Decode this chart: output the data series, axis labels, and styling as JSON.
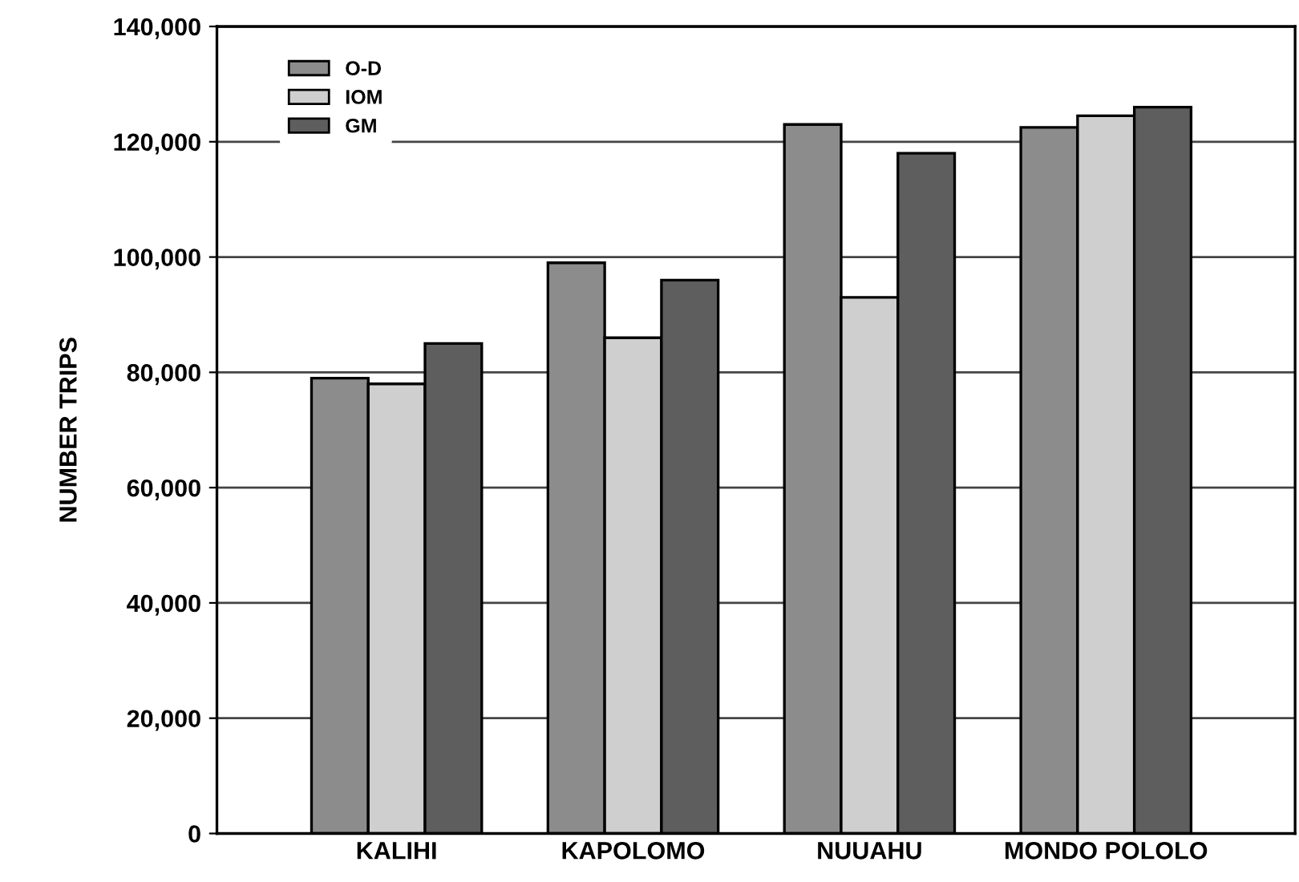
{
  "chart_data": {
    "type": "bar",
    "ylabel": "NUMBER TRIPS",
    "categories": [
      "KALIHI",
      "KAPOLOMO",
      "NUUAHU",
      "MONDO POLOLO"
    ],
    "series": [
      {
        "name": "O-D",
        "color": "#8c8c8c",
        "values": [
          79000,
          99000,
          123000,
          122500
        ]
      },
      {
        "name": "IOM",
        "color": "#cfcfcf",
        "values": [
          78000,
          86000,
          93000,
          124500
        ]
      },
      {
        "name": "GM",
        "color": "#5e5e5e",
        "values": [
          85000,
          96000,
          118000,
          126000
        ]
      }
    ],
    "ylim": [
      0,
      140000
    ],
    "yticks": [
      {
        "value": 0,
        "label": "0"
      },
      {
        "value": 20000,
        "label": "20,000"
      },
      {
        "value": 40000,
        "label": "40,000"
      },
      {
        "value": 60000,
        "label": "60,000"
      },
      {
        "value": 80000,
        "label": "80,000"
      },
      {
        "value": 100000,
        "label": "100,000"
      },
      {
        "value": 120000,
        "label": "120,000"
      },
      {
        "value": 140000,
        "label": "140,000"
      }
    ],
    "grid": "y",
    "legend": "top left"
  }
}
